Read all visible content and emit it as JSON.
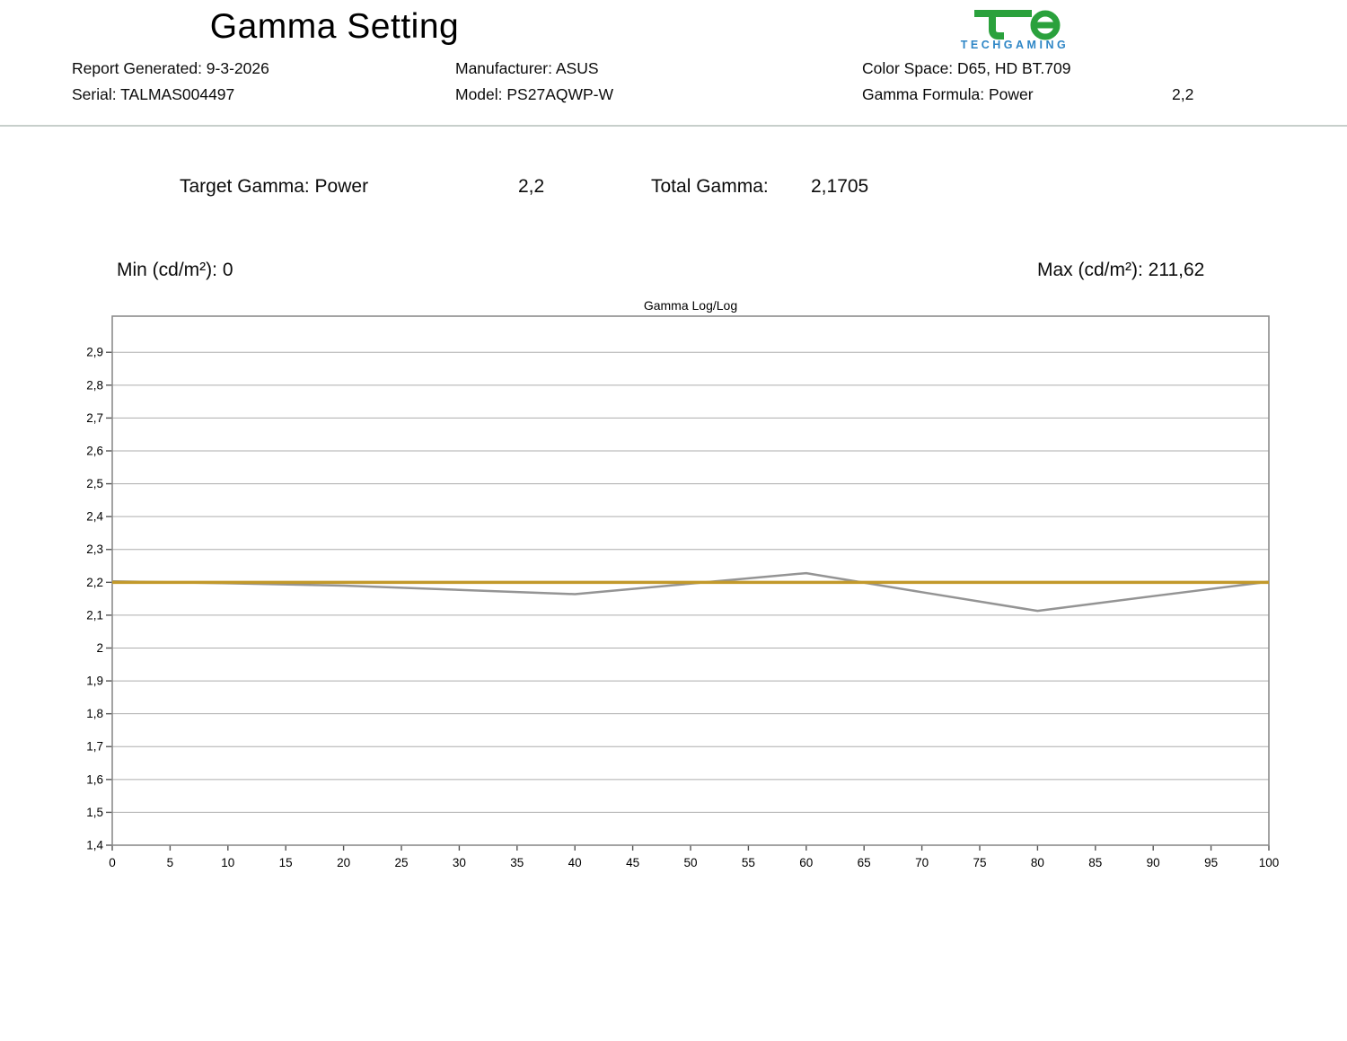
{
  "header": {
    "title": "Gamma Setting",
    "report_generated": "Report Generated: 9-3-2026",
    "serial": "Serial: TALMAS004497",
    "manufacturer": "Manufacturer: ASUS",
    "model": "Model: PS27AQWP-W",
    "color_space": "Color Space: D65, HD BT.709",
    "gamma_formula": "Gamma Formula: Power",
    "gamma_formula_value": "2,2",
    "logo": {
      "brand": "TECHGAMING",
      "mark_color": "#2aa13c",
      "text_color": "#2e86c6"
    }
  },
  "summary": {
    "target_gamma_label": "Target Gamma: Power",
    "target_gamma_value": "2,2",
    "total_gamma_label": "Total Gamma:",
    "total_gamma_value": "2,1705",
    "min_label": "Min (cd/m²): 0",
    "max_label": "Max (cd/m²): 211,62"
  },
  "chart_data": {
    "type": "line",
    "title": "Gamma Log/Log",
    "xlabel": "",
    "ylabel": "",
    "xlim": [
      0,
      100
    ],
    "ylim": [
      1.4,
      3.01
    ],
    "grid": true,
    "legend": "none",
    "x_ticks": [
      0,
      5,
      10,
      15,
      20,
      25,
      30,
      35,
      40,
      45,
      50,
      55,
      60,
      65,
      70,
      75,
      80,
      85,
      90,
      95,
      100
    ],
    "y_tick_values": [
      2.9,
      2.8,
      2.7,
      2.6,
      2.5,
      2.4,
      2.3,
      2.2,
      2.1,
      2.0,
      1.9,
      1.8,
      1.7,
      1.6,
      1.5,
      1.4
    ],
    "y_tick_labels": [
      "2,9",
      "2,8",
      "2,7",
      "2,6",
      "2,5",
      "2,4",
      "2,3",
      "2,2",
      "2,1",
      "2",
      "1,9",
      "1,8",
      "1,7",
      "1,6",
      "1,5",
      "1,4"
    ],
    "series": [
      {
        "name": "measured-gamma",
        "color": "#949494",
        "width": 2.5,
        "x": [
          0,
          10,
          20,
          30,
          40,
          50,
          60,
          70,
          80,
          90,
          100
        ],
        "values": [
          2.203,
          2.197,
          2.19,
          2.177,
          2.164,
          2.196,
          2.228,
          2.17,
          2.113,
          2.158,
          2.202
        ]
      },
      {
        "name": "target-gamma",
        "color": "#c2992b",
        "width": 3.5,
        "x": [
          0,
          100
        ],
        "values": [
          2.2,
          2.2
        ]
      }
    ],
    "colors": {
      "gridline": "#adadad",
      "border": "#8c8c8c",
      "tick_text": "#000000"
    }
  }
}
